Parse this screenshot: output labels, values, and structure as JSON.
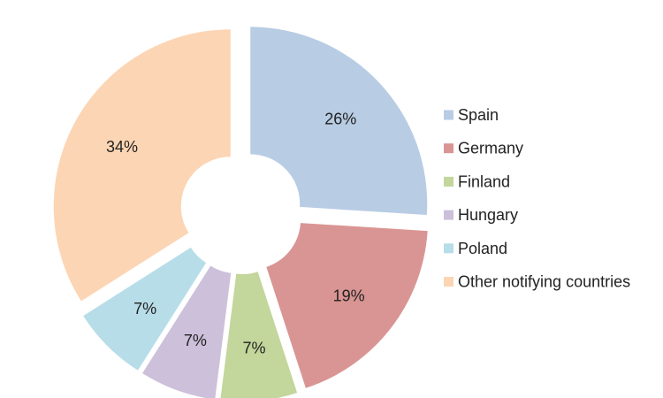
{
  "chart_data": {
    "type": "pie",
    "title": "",
    "legend_position": "right",
    "slices": [
      {
        "label": "Spain",
        "value": 26,
        "display": "26%",
        "color": "#B8CCE4"
      },
      {
        "label": "Germany",
        "value": 19,
        "display": "19%",
        "color": "#D99594"
      },
      {
        "label": "Finland",
        "value": 7,
        "display": "7%",
        "color": "#C3D69B"
      },
      {
        "label": "Hungary",
        "value": 7,
        "display": "7%",
        "color": "#CCC0DA"
      },
      {
        "label": "Poland",
        "value": 7,
        "display": "7%",
        "color": "#B7DDE8"
      },
      {
        "label": "Other notifying countries",
        "value": 34,
        "display": "34%",
        "color": "#FCD5B4"
      }
    ]
  }
}
